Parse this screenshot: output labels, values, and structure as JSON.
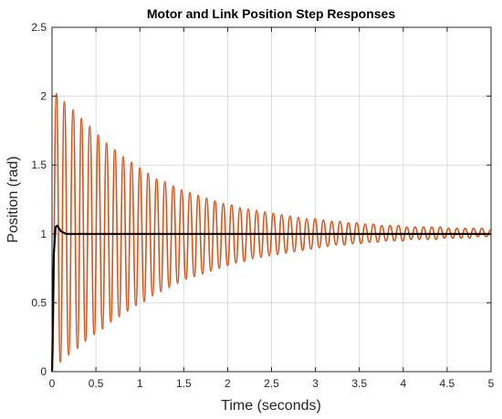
{
  "chart_data": {
    "type": "line",
    "title": "Motor and Link Position Step Responses",
    "xlabel": "Time (seconds)",
    "ylabel": "Position (rad)",
    "xlim": [
      0,
      5
    ],
    "ylim": [
      0,
      2.5
    ],
    "xticks": [
      0,
      0.5,
      1,
      1.5,
      2,
      2.5,
      3,
      3.5,
      4,
      4.5,
      5
    ],
    "xtick_labels": [
      "0",
      "0.5",
      "1",
      "1.5",
      "2",
      "2.5",
      "3",
      "3.5",
      "4",
      "4.5",
      "5"
    ],
    "yticks": [
      0,
      0.5,
      1,
      1.5,
      2,
      2.5
    ],
    "ytick_labels": [
      "0",
      "0.5",
      "1",
      "1.5",
      "2",
      "2.5"
    ],
    "grid": true,
    "series": [
      {
        "color": "#D95319",
        "x": [
          0,
          0.05,
          0.095,
          0.14,
          0.19,
          0.24,
          0.29,
          0.335,
          0.38,
          0.43,
          0.48,
          0.525,
          0.575,
          0.62,
          0.67,
          0.715,
          0.765,
          0.81,
          0.86,
          0.905,
          0.955,
          1.0,
          1.05,
          1.095,
          1.145,
          1.19,
          1.24,
          1.285,
          1.335,
          1.38,
          1.43,
          1.475,
          1.525,
          1.57,
          1.62,
          1.665,
          1.715,
          1.76,
          1.81,
          1.855,
          1.905,
          1.95,
          2.0,
          2.045,
          2.095,
          2.14,
          2.19,
          2.235,
          2.285,
          2.33,
          2.38,
          2.425,
          2.475,
          2.52,
          2.57,
          2.615,
          2.665,
          2.71,
          2.76,
          2.805,
          2.855,
          2.9,
          2.95,
          2.995,
          3.045,
          3.09,
          3.14,
          3.185,
          3.235,
          3.28,
          3.33,
          3.375,
          3.425,
          3.47,
          3.52,
          3.565,
          3.615,
          3.66,
          3.71,
          3.755,
          3.805,
          3.85,
          3.9,
          3.945,
          3.995,
          4.04,
          4.09,
          4.135,
          4.185,
          4.23,
          4.28,
          4.325,
          4.375,
          4.42,
          4.47,
          4.515,
          4.565,
          4.61,
          4.66,
          4.705,
          4.755,
          4.8,
          4.85,
          4.895,
          4.945,
          5.0
        ],
        "y": [
          0,
          2.02,
          0.07,
          1.96,
          0.12,
          1.9,
          0.17,
          1.84,
          0.22,
          1.78,
          0.27,
          1.72,
          0.31,
          1.66,
          0.36,
          1.61,
          0.4,
          1.56,
          0.44,
          1.52,
          0.48,
          1.48,
          0.51,
          1.44,
          0.55,
          1.4,
          0.58,
          1.38,
          0.61,
          1.35,
          0.64,
          1.32,
          0.67,
          1.3,
          0.69,
          1.28,
          0.71,
          1.26,
          0.73,
          1.24,
          0.75,
          1.22,
          0.77,
          1.21,
          0.79,
          1.19,
          0.8,
          1.18,
          0.82,
          1.17,
          0.83,
          1.16,
          0.84,
          1.15,
          0.85,
          1.14,
          0.86,
          1.13,
          0.87,
          1.12,
          0.88,
          1.11,
          0.89,
          1.11,
          0.9,
          1.1,
          0.91,
          1.09,
          0.92,
          1.09,
          0.92,
          1.08,
          0.93,
          1.08,
          0.93,
          1.07,
          0.94,
          1.07,
          0.94,
          1.06,
          0.95,
          1.06,
          0.95,
          1.06,
          0.95,
          1.05,
          0.96,
          1.05,
          0.96,
          1.05,
          0.96,
          1.05,
          0.96,
          1.05,
          0.97,
          1.04,
          0.97,
          1.04,
          0.97,
          1.04,
          0.97,
          1.04,
          0.98,
          1.04,
          0.98,
          1.03
        ]
      },
      {
        "color": "#000000",
        "x": [
          0,
          0.02,
          0.04,
          0.06,
          0.08,
          0.1,
          0.13,
          0.16,
          0.2,
          0.25,
          0.3,
          0.4,
          0.5,
          1,
          2,
          3,
          4,
          5
        ],
        "y": [
          0,
          0.85,
          1.05,
          1.06,
          1.04,
          1.02,
          1.01,
          1.0,
          1.0,
          1.0,
          1.0,
          1.0,
          1.0,
          1.0,
          1.0,
          1.0,
          1.0,
          1.0
        ]
      }
    ]
  }
}
